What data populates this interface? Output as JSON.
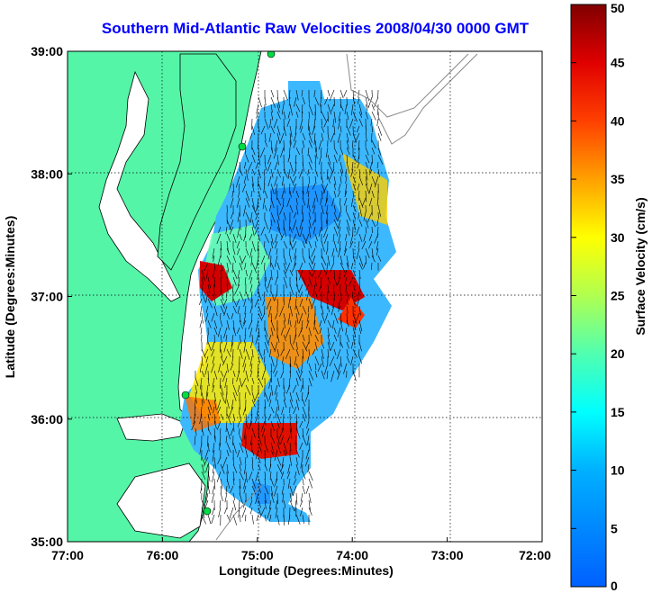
{
  "title": "Southern Mid-Atlantic Raw Velocities 2008/04/30 0000 GMT",
  "xlabel": "Longitude (Degrees:Minutes)",
  "ylabel": "Latitude (Degrees:Minutes)",
  "x_ticks": [
    "77:00",
    "76:00",
    "75:00",
    "74:00",
    "73:00",
    "72:00"
  ],
  "y_ticks": [
    "39:00",
    "38:00",
    "37:00",
    "36:00",
    "35:00"
  ],
  "colorbar": {
    "label": "Surface Velocity (cm/s)",
    "ticks": [
      "0",
      "5",
      "10",
      "15",
      "20",
      "25",
      "30",
      "35",
      "40",
      "45",
      "50"
    ],
    "range": [
      0,
      50
    ]
  },
  "colors": {
    "land": "#55f5a8",
    "title": "#0000ff",
    "coast": "#000000",
    "isobath": "#888888"
  },
  "chart_data": {
    "type": "heatmap",
    "lon_range": [
      -77,
      -72
    ],
    "lat_range": [
      35,
      39
    ],
    "grid": true,
    "colormap": "jet",
    "value_range": [
      0,
      50
    ]
  }
}
